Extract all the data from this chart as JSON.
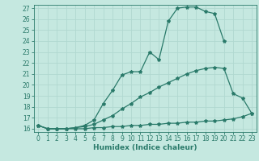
{
  "xlabel": "Humidex (Indice chaleur)",
  "xlim": [
    -0.5,
    23.5
  ],
  "ylim": [
    15.7,
    27.3
  ],
  "xticks": [
    0,
    1,
    2,
    3,
    4,
    5,
    6,
    7,
    8,
    9,
    10,
    11,
    12,
    13,
    14,
    15,
    16,
    17,
    18,
    19,
    20,
    21,
    22,
    23
  ],
  "yticks": [
    16,
    17,
    18,
    19,
    20,
    21,
    22,
    23,
    24,
    25,
    26,
    27
  ],
  "line_color": "#2a7a6a",
  "bg_color": "#c5e8e0",
  "grid_color": "#b0d8d0",
  "line1_x": [
    0,
    1,
    2,
    3,
    4,
    5,
    6,
    7,
    8,
    9,
    10,
    11,
    12,
    13,
    14,
    15,
    16,
    17,
    18,
    19,
    20
  ],
  "line1_y": [
    16.3,
    16.0,
    16.0,
    16.0,
    16.1,
    16.3,
    16.8,
    18.3,
    19.5,
    20.9,
    21.2,
    21.2,
    23.0,
    22.3,
    25.8,
    27.0,
    27.1,
    27.1,
    26.7,
    26.5,
    24.0
  ],
  "line2_x": [
    0,
    1,
    2,
    3,
    4,
    5,
    6,
    7,
    8,
    9,
    10,
    11,
    12,
    13,
    14,
    15,
    16,
    17,
    18,
    19,
    20,
    21,
    22,
    23
  ],
  "line2_y": [
    16.3,
    16.0,
    16.0,
    16.0,
    16.1,
    16.2,
    16.4,
    16.8,
    17.2,
    17.8,
    18.3,
    18.9,
    19.3,
    19.8,
    20.2,
    20.6,
    21.0,
    21.3,
    21.5,
    21.6,
    21.5,
    19.2,
    18.8,
    17.4
  ],
  "line3_x": [
    0,
    1,
    2,
    3,
    4,
    5,
    6,
    7,
    8,
    9,
    10,
    11,
    12,
    13,
    14,
    15,
    16,
    17,
    18,
    19,
    20,
    21,
    22,
    23
  ],
  "line3_y": [
    16.3,
    16.0,
    16.0,
    16.0,
    16.0,
    16.0,
    16.1,
    16.1,
    16.2,
    16.2,
    16.3,
    16.3,
    16.4,
    16.4,
    16.5,
    16.5,
    16.6,
    16.6,
    16.7,
    16.7,
    16.8,
    16.9,
    17.1,
    17.4
  ],
  "marker": "*",
  "markersize": 3,
  "linewidth": 0.9,
  "tick_fontsize": 5.5,
  "xlabel_fontsize": 6.5
}
